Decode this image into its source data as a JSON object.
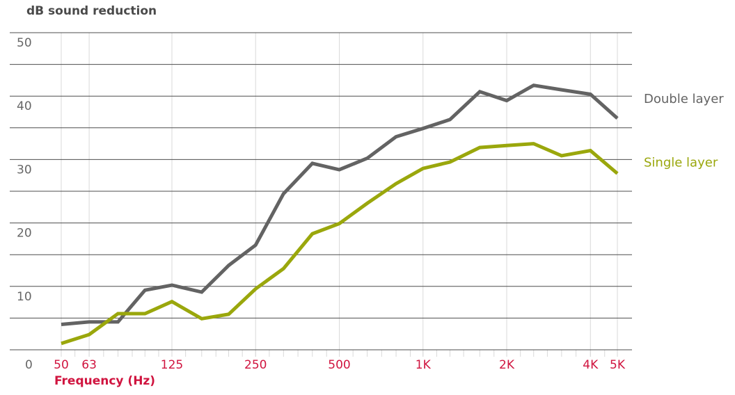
{
  "chart_data": {
    "type": "line",
    "title": "dB sound reduction",
    "xlabel": "Frequency (Hz)",
    "ylabel": "",
    "ylim": [
      0,
      50
    ],
    "yticks": [
      {
        "value": 50,
        "label": "50"
      },
      {
        "value": 40,
        "label": "40"
      },
      {
        "value": 30,
        "label": "30"
      },
      {
        "value": 20,
        "label": "20"
      },
      {
        "value": 10,
        "label": "10"
      },
      {
        "value": 0,
        "label": "0"
      }
    ],
    "gridlines_y": [
      0,
      5,
      10,
      15,
      20,
      25,
      30,
      35,
      40,
      45,
      50
    ],
    "x_scale": "log2",
    "x_band_edges": [
      50,
      56,
      63,
      71,
      80,
      90,
      100,
      112,
      125,
      140,
      160,
      180,
      200,
      224,
      250,
      280,
      315,
      355,
      400,
      450,
      500,
      560,
      630,
      710,
      800,
      900,
      1000,
      1120,
      1250,
      1400,
      1600,
      1800,
      2000,
      2240,
      2500,
      2800,
      3150,
      3550,
      4000,
      4500,
      5000
    ],
    "x_grid_frequencies": [
      50,
      63,
      125,
      250,
      500,
      1000,
      2000,
      4000,
      5000
    ],
    "xticks": [
      {
        "value": 50,
        "label": "50"
      },
      {
        "value": 63,
        "label": "63"
      },
      {
        "value": 125,
        "label": "125"
      },
      {
        "value": 250,
        "label": "250"
      },
      {
        "value": 500,
        "label": "500"
      },
      {
        "value": 1000,
        "label": "1K"
      },
      {
        "value": 2000,
        "label": "2K"
      },
      {
        "value": 4000,
        "label": "4K"
      },
      {
        "value": 5000,
        "label": "5K"
      }
    ],
    "x": [
      50,
      63,
      80,
      100,
      125,
      160,
      200,
      250,
      315,
      400,
      500,
      630,
      800,
      1000,
      1250,
      1600,
      2000,
      2500,
      3150,
      4000,
      5000
    ],
    "series": [
      {
        "name": "Double layer",
        "color": "#636363",
        "values": [
          4,
          4.4,
          4.4,
          9.4,
          10.2,
          9.1,
          13.3,
          16.5,
          24.6,
          29.4,
          28.4,
          30.2,
          33.6,
          34.9,
          36.3,
          40.7,
          39.3,
          41.7,
          41.0,
          40.3,
          36.5
        ]
      },
      {
        "name": "Single layer",
        "color": "#9aa70c",
        "values": [
          1,
          2.4,
          5.7,
          5.7,
          7.6,
          4.9,
          5.6,
          9.6,
          12.8,
          18.3,
          19.9,
          23.1,
          26.2,
          28.6,
          29.6,
          31.9,
          32.2,
          32.5,
          30.6,
          31.4,
          27.8
        ]
      }
    ],
    "colors": {
      "title": "#4a4a4a",
      "ytick": "#666666",
      "xtick": "#d0143f",
      "xlabel": "#d0143f",
      "grid_h": "#4d4d4d",
      "grid_v": "#d9d9d9"
    },
    "grid": true,
    "legend": "right"
  }
}
